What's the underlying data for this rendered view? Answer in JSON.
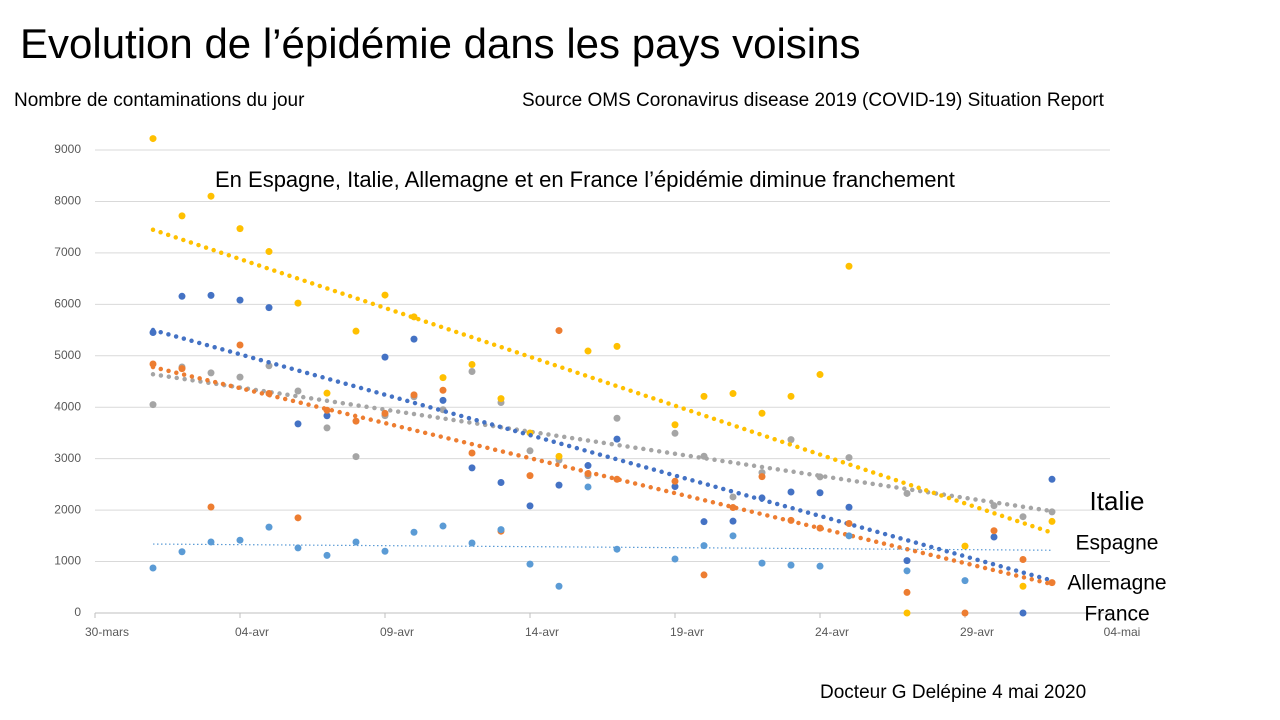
{
  "chart_data": {
    "type": "scatter",
    "title": "Evolution de l’épidémie dans les pays voisins",
    "y_axis_label": "Nombre de contaminations du jour",
    "source": "Source OMS Coronavirus disease 2019 (COVID-19) Situation Report",
    "annotation": "En Espagne, Italie, Allemagne  et en France l’épidémie diminue franchement",
    "footer": "Docteur G Delépine 4 mai 2020",
    "xlim": [
      0,
      35
    ],
    "xticks": [
      {
        "value": 0,
        "label": "30-mars"
      },
      {
        "value": 5,
        "label": "04-avr"
      },
      {
        "value": 10,
        "label": "09-avr"
      },
      {
        "value": 15,
        "label": "14-avr"
      },
      {
        "value": 20,
        "label": "19-avr"
      },
      {
        "value": 25,
        "label": "24-avr"
      },
      {
        "value": 30,
        "label": "29-avr"
      },
      {
        "value": 35,
        "label": "04-mai"
      }
    ],
    "ylim": [
      0,
      9000
    ],
    "yticks": [
      0,
      1000,
      2000,
      3000,
      4000,
      5000,
      6000,
      7000,
      8000,
      9000
    ],
    "grid": true,
    "x": [
      2,
      3,
      4,
      5,
      6,
      7,
      8,
      9,
      10,
      11,
      12,
      13,
      14,
      15,
      16,
      17,
      18,
      19,
      20,
      21,
      22,
      23,
      24,
      25,
      26,
      27,
      28,
      29,
      30,
      31,
      32,
      33
    ],
    "series": [
      {
        "name": "Italie",
        "color": "#a5a5a5",
        "legend_color": "#70ad47",
        "trend": [
          4640,
          1980
        ],
        "values": [
          4050,
          4782,
          4668,
          4585,
          4805,
          4316,
          3599,
          3039,
          3836,
          4204,
          3951,
          4694,
          4092,
          3153,
          2972,
          2667,
          3786,
          null,
          3493,
          3047,
          2256,
          2729,
          3370,
          2646,
          3021,
          null,
          2324,
          null,
          null,
          2086,
          1872,
          1965
        ]
      },
      {
        "name": "Espagne",
        "color": "#ffc000",
        "legend_color": "#ffc000",
        "trend": [
          7450,
          1560
        ],
        "values": [
          9222,
          7719,
          8102,
          7472,
          7026,
          6023,
          4273,
          5478,
          6180,
          5756,
          4576,
          4830,
          4167,
          3500,
          3045,
          5092,
          5183,
          null,
          3660,
          4211,
          4266,
          3883,
          4212,
          4635,
          6740,
          null,
          0,
          null,
          1300,
          null,
          520,
          1780
        ]
      },
      {
        "name": "Allemagne",
        "color": "#4472c4",
        "legend_color": "#4472c4",
        "trend": [
          5500,
          630
        ],
        "values": [
          5453,
          6156,
          6174,
          6082,
          5936,
          3677,
          3834,
          null,
          4974,
          5323,
          4133,
          2821,
          2537,
          2082,
          2486,
          2866,
          3380,
          null,
          2458,
          1775,
          1785,
          2237,
          2352,
          2337,
          2055,
          null,
          1018,
          null,
          null,
          1478,
          0,
          2599
        ]
      },
      {
        "name": "France",
        "color": "#ed7d31",
        "legend_color": "#ed7d31",
        "trend": [
          4780,
          560
        ],
        "values": [
          4840,
          4750,
          2060,
          5210,
          4267,
          1850,
          3940,
          3730,
          3880,
          4240,
          4330,
          3110,
          1590,
          2670,
          5490,
          2710,
          2600,
          null,
          2560,
          740,
          2050,
          2650,
          1800,
          1650,
          1740,
          null,
          400,
          null,
          0,
          1600,
          1040,
          590
        ]
      },
      {
        "color": "#5b9bd5",
        "trend": [
          1340,
          1220
        ],
        "thin_trend": true,
        "values": [
          875,
          1190,
          1380,
          1415,
          1670,
          1265,
          1120,
          1380,
          1200,
          1570,
          1690,
          1360,
          1620,
          950,
          520,
          2450,
          1240,
          null,
          1050,
          1310,
          1500,
          970,
          930,
          910,
          1500,
          null,
          820,
          null,
          630,
          null,
          null,
          null
        ]
      }
    ]
  }
}
